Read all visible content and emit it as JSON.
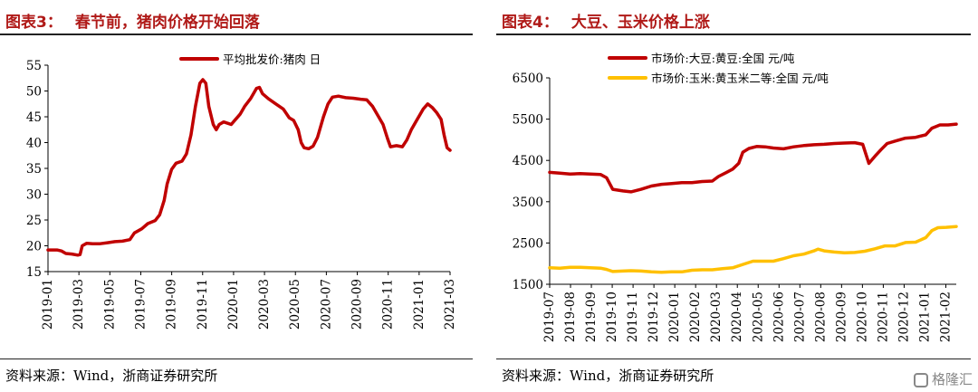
{
  "left": {
    "figure_label": "图表3：",
    "title": "春节前，猪肉价格开始回落",
    "source": "资料来源：Wind，浙商证券研究所"
  },
  "right": {
    "figure_label": "图表4：",
    "title": "大豆、玉米价格上涨",
    "source": "资料来源：Wind，浙商证券研究所"
  },
  "watermark": "格隆汇",
  "chart_data": [
    {
      "type": "line",
      "ylim": [
        15,
        55
      ],
      "yticks": [
        15,
        20,
        25,
        30,
        35,
        40,
        45,
        50,
        55
      ],
      "xlim": [
        0,
        26
      ],
      "xtick_labels": [
        "2019-01",
        "2019-03",
        "2019-05",
        "2019-07",
        "2019-09",
        "2019-11",
        "2020-01",
        "2020-03",
        "2020-05",
        "2020-07",
        "2020-09",
        "2020-11",
        "2021-01",
        "2021-03"
      ],
      "series": [
        {
          "name": "平均批发价:猪肉 日",
          "color": "#c00000",
          "points": [
            [
              0,
              19.2
            ],
            [
              0.6,
              19.2
            ],
            [
              0.9,
              19.0
            ],
            [
              1.2,
              18.5
            ],
            [
              1.6,
              18.4
            ],
            [
              2.0,
              18.2
            ],
            [
              2.15,
              18.3
            ],
            [
              2.3,
              20.0
            ],
            [
              2.6,
              20.5
            ],
            [
              3.0,
              20.4
            ],
            [
              3.5,
              20.4
            ],
            [
              4.0,
              20.6
            ],
            [
              4.5,
              20.8
            ],
            [
              5.0,
              20.9
            ],
            [
              5.5,
              21.2
            ],
            [
              5.8,
              22.5
            ],
            [
              6.3,
              23.3
            ],
            [
              6.7,
              24.3
            ],
            [
              7.2,
              24.9
            ],
            [
              7.5,
              26.0
            ],
            [
              7.8,
              28.8
            ],
            [
              8.0,
              32.0
            ],
            [
              8.3,
              34.8
            ],
            [
              8.6,
              36.0
            ],
            [
              9.0,
              36.4
            ],
            [
              9.3,
              37.8
            ],
            [
              9.6,
              41.5
            ],
            [
              9.9,
              47.0
            ],
            [
              10.2,
              51.5
            ],
            [
              10.4,
              52.2
            ],
            [
              10.6,
              51.5
            ],
            [
              10.8,
              47.0
            ],
            [
              11.1,
              43.5
            ],
            [
              11.3,
              42.5
            ],
            [
              11.5,
              43.5
            ],
            [
              11.8,
              44.0
            ],
            [
              12.3,
              43.5
            ],
            [
              12.6,
              44.5
            ],
            [
              12.9,
              45.5
            ],
            [
              13.2,
              47.0
            ],
            [
              13.6,
              48.5
            ],
            [
              14.0,
              50.5
            ],
            [
              14.2,
              50.7
            ],
            [
              14.4,
              49.5
            ],
            [
              14.8,
              48.5
            ],
            [
              15.3,
              47.5
            ],
            [
              15.8,
              46.5
            ],
            [
              16.2,
              44.8
            ],
            [
              16.5,
              44.3
            ],
            [
              16.8,
              42.5
            ],
            [
              17.0,
              40.0
            ],
            [
              17.2,
              39.0
            ],
            [
              17.5,
              38.8
            ],
            [
              17.8,
              39.3
            ],
            [
              18.1,
              41.0
            ],
            [
              18.5,
              45.0
            ],
            [
              18.8,
              47.5
            ],
            [
              19.1,
              48.8
            ],
            [
              19.5,
              49.0
            ],
            [
              20.0,
              48.7
            ],
            [
              20.5,
              48.6
            ],
            [
              21.0,
              48.4
            ],
            [
              21.4,
              48.3
            ],
            [
              21.8,
              47.0
            ],
            [
              22.2,
              45.0
            ],
            [
              22.5,
              43.5
            ],
            [
              22.8,
              40.8
            ],
            [
              23.0,
              39.2
            ],
            [
              23.4,
              39.4
            ],
            [
              23.8,
              39.2
            ],
            [
              24.1,
              40.5
            ],
            [
              24.4,
              42.5
            ],
            [
              24.8,
              44.5
            ],
            [
              25.2,
              46.5
            ],
            [
              25.5,
              47.5
            ],
            [
              25.8,
              46.8
            ],
            [
              26.1,
              45.8
            ],
            [
              26.4,
              44.5
            ],
            [
              26.6,
              41.5
            ],
            [
              26.8,
              39.0
            ],
            [
              27.0,
              38.5
            ]
          ]
        }
      ]
    },
    {
      "type": "line",
      "ylim": [
        1500,
        6500
      ],
      "yticks": [
        1500,
        2500,
        3500,
        4500,
        5500,
        6500
      ],
      "xtick_labels": [
        "2019-07",
        "2019-08",
        "2019-09",
        "2019-10",
        "2019-11",
        "2019-12",
        "2020-01",
        "2020-02",
        "2020-03",
        "2020-04",
        "2020-05",
        "2020-06",
        "2020-07",
        "2020-08",
        "2020-09",
        "2020-10",
        "2020-11",
        "2020-12",
        "2021-01",
        "2021-02"
      ],
      "series": [
        {
          "name": "市场价:大豆:黄豆:全国 元/吨",
          "color": "#c00000",
          "points": [
            [
              0,
              4210
            ],
            [
              0.5,
              4190
            ],
            [
              1,
              4170
            ],
            [
              1.5,
              4180
            ],
            [
              2,
              4170
            ],
            [
              2.5,
              4160
            ],
            [
              2.8,
              4080
            ],
            [
              3.1,
              3800
            ],
            [
              3.6,
              3760
            ],
            [
              4,
              3740
            ],
            [
              4.5,
              3800
            ],
            [
              5,
              3880
            ],
            [
              5.5,
              3920
            ],
            [
              6,
              3940
            ],
            [
              6.5,
              3960
            ],
            [
              7,
              3960
            ],
            [
              7.5,
              3990
            ],
            [
              8,
              4000
            ],
            [
              8.3,
              4110
            ],
            [
              8.7,
              4210
            ],
            [
              9,
              4290
            ],
            [
              9.3,
              4430
            ],
            [
              9.5,
              4700
            ],
            [
              9.8,
              4790
            ],
            [
              10.2,
              4840
            ],
            [
              10.6,
              4830
            ],
            [
              11,
              4800
            ],
            [
              11.5,
              4780
            ],
            [
              12,
              4830
            ],
            [
              12.5,
              4860
            ],
            [
              13,
              4880
            ],
            [
              13.5,
              4890
            ],
            [
              14,
              4910
            ],
            [
              14.5,
              4920
            ],
            [
              15,
              4930
            ],
            [
              15.4,
              4890
            ],
            [
              15.7,
              4430
            ],
            [
              16,
              4600
            ],
            [
              16.3,
              4760
            ],
            [
              16.6,
              4910
            ],
            [
              17,
              4970
            ],
            [
              17.5,
              5040
            ],
            [
              18,
              5060
            ],
            [
              18.5,
              5120
            ],
            [
              18.8,
              5280
            ],
            [
              19.2,
              5360
            ],
            [
              19.6,
              5360
            ],
            [
              20,
              5380
            ]
          ]
        },
        {
          "name": "市场价:玉米:黄玉米二等:全国 元/吨",
          "color": "#ffc000",
          "points": [
            [
              0,
              1900
            ],
            [
              0.5,
              1890
            ],
            [
              1,
              1910
            ],
            [
              1.5,
              1910
            ],
            [
              2,
              1900
            ],
            [
              2.5,
              1890
            ],
            [
              2.8,
              1860
            ],
            [
              3.1,
              1810
            ],
            [
              3.6,
              1820
            ],
            [
              4,
              1830
            ],
            [
              4.5,
              1820
            ],
            [
              5,
              1800
            ],
            [
              5.5,
              1790
            ],
            [
              6,
              1800
            ],
            [
              6.5,
              1800
            ],
            [
              7,
              1840
            ],
            [
              7.5,
              1850
            ],
            [
              8,
              1850
            ],
            [
              8.5,
              1880
            ],
            [
              9,
              1900
            ],
            [
              9.5,
              1980
            ],
            [
              10,
              2060
            ],
            [
              10.5,
              2060
            ],
            [
              11,
              2060
            ],
            [
              11.5,
              2120
            ],
            [
              12,
              2190
            ],
            [
              12.5,
              2230
            ],
            [
              13,
              2310
            ],
            [
              13.2,
              2350
            ],
            [
              13.5,
              2310
            ],
            [
              14,
              2280
            ],
            [
              14.5,
              2260
            ],
            [
              15,
              2270
            ],
            [
              15.5,
              2300
            ],
            [
              16,
              2360
            ],
            [
              16.5,
              2430
            ],
            [
              17,
              2430
            ],
            [
              17.5,
              2510
            ],
            [
              18,
              2520
            ],
            [
              18.5,
              2630
            ],
            [
              18.8,
              2800
            ],
            [
              19.1,
              2870
            ],
            [
              19.5,
              2880
            ],
            [
              20,
              2900
            ]
          ]
        }
      ]
    }
  ]
}
